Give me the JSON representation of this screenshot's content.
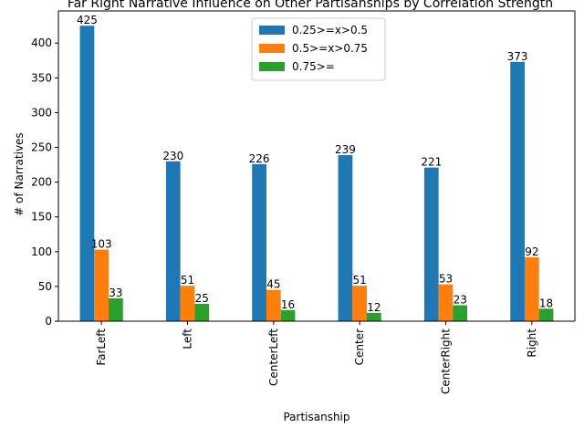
{
  "chart_data": {
    "type": "bar",
    "title": "Far Right Narrative Influence on Other Partisanships by Correlation Strength",
    "xlabel": "Partisanship",
    "ylabel": "# of Narratives",
    "categories": [
      "FarLeft",
      "Left",
      "CenterLeft",
      "Center",
      "CenterRight",
      "Right"
    ],
    "series": [
      {
        "name": "0.25>=x>0.5",
        "color": "#1f77b4",
        "values": [
          425,
          230,
          226,
          239,
          221,
          373
        ]
      },
      {
        "name": "0.5>=x>0.75",
        "color": "#ff7f0e",
        "values": [
          103,
          51,
          45,
          51,
          53,
          92
        ]
      },
      {
        "name": "0.75>=",
        "color": "#2ca02c",
        "values": [
          33,
          25,
          16,
          12,
          23,
          18
        ]
      }
    ],
    "ylim": [
      0,
      446.25
    ],
    "yticks": [
      "0",
      "50",
      "100",
      "150",
      "200",
      "250",
      "300",
      "350",
      "400"
    ],
    "grid": false,
    "legend_position": "upper center"
  }
}
